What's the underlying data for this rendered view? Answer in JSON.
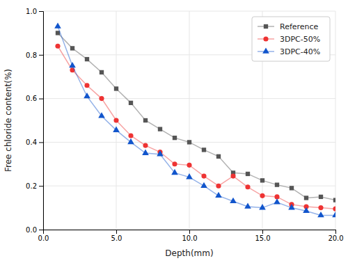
{
  "chart_data": {
    "type": "line",
    "xlabel": "Depth(mm)",
    "ylabel": "Free chloride content(%)",
    "x": [
      1,
      2,
      3,
      4,
      5,
      6,
      7,
      8,
      9,
      10,
      11,
      12,
      13,
      14,
      15,
      16,
      17,
      18,
      19,
      20
    ],
    "xlim": [
      0.0,
      20.0
    ],
    "ylim": [
      0.0,
      1.0
    ],
    "xticks": [
      {
        "value": 0.0,
        "label": "0.0"
      },
      {
        "value": 5.0,
        "label": "5.0"
      },
      {
        "value": 10.0,
        "label": "10.0"
      },
      {
        "value": 15.0,
        "label": "15.0"
      },
      {
        "value": 20.0,
        "label": "20.0"
      }
    ],
    "yticks": [
      {
        "value": 0.0,
        "label": "0.0"
      },
      0.2,
      0.4,
      0.6,
      0.8,
      {
        "value": 1.0,
        "label": "1.0"
      }
    ],
    "grid": true,
    "legend": "upper right",
    "series": [
      {
        "name": "Reference",
        "color": "#555555",
        "marker": "square",
        "values": [
          0.9,
          0.83,
          0.78,
          0.72,
          0.645,
          0.58,
          0.5,
          0.46,
          0.42,
          0.4,
          0.365,
          0.335,
          0.26,
          0.255,
          0.225,
          0.205,
          0.19,
          0.145,
          0.15,
          0.135
        ]
      },
      {
        "name": "3DPC-50%",
        "color": "#ee3333",
        "marker": "circle",
        "values": [
          0.84,
          0.73,
          0.66,
          0.6,
          0.5,
          0.43,
          0.385,
          0.355,
          0.3,
          0.295,
          0.245,
          0.2,
          0.245,
          0.195,
          0.155,
          0.15,
          0.115,
          0.105,
          0.1,
          0.095
        ]
      },
      {
        "name": "3DPC-40%",
        "color": "#1155cc",
        "marker": "triangle",
        "values": [
          0.93,
          0.75,
          0.61,
          0.52,
          0.455,
          0.4,
          0.35,
          0.345,
          0.26,
          0.24,
          0.2,
          0.155,
          0.13,
          0.105,
          0.1,
          0.125,
          0.1,
          0.085,
          0.065,
          0.065
        ]
      }
    ]
  }
}
